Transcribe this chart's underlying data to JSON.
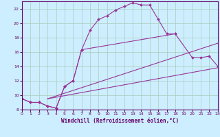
{
  "bg_color": "#cceeff",
  "grid_color": "#aaccbb",
  "line_color": "#993399",
  "xlabel": "Windchill (Refroidissement éolien,°C)",
  "xlabel_color": "#660066",
  "tick_color": "#660066",
  "spine_color": "#660066",
  "xlim": [
    0,
    23
  ],
  "ylim": [
    8,
    23
  ],
  "yticks": [
    8,
    10,
    12,
    14,
    16,
    18,
    20,
    22
  ],
  "xticks": [
    0,
    1,
    2,
    3,
    4,
    5,
    6,
    7,
    8,
    9,
    10,
    11,
    12,
    13,
    14,
    15,
    16,
    17,
    18,
    19,
    20,
    21,
    22,
    23
  ],
  "curve1_x": [
    0,
    1,
    2,
    3,
    4,
    5,
    6,
    7,
    8,
    9,
    10,
    11,
    12,
    13,
    14,
    15,
    16,
    17,
    18
  ],
  "curve1_y": [
    9.5,
    9.0,
    9.0,
    8.5,
    8.2,
    11.2,
    12.0,
    16.3,
    19.0,
    20.5,
    21.0,
    21.8,
    22.3,
    22.8,
    22.5,
    22.5,
    20.5,
    18.5,
    18.5
  ],
  "curve2_x": [
    0,
    1,
    2,
    3,
    4,
    5,
    6,
    7,
    18,
    20,
    21,
    22,
    23
  ],
  "curve2_y": [
    9.5,
    9.0,
    9.0,
    8.5,
    8.2,
    11.2,
    12.0,
    16.3,
    18.5,
    15.2,
    15.2,
    15.4,
    14.0
  ],
  "line3_x": [
    3,
    23
  ],
  "line3_y": [
    9.5,
    17.2
  ],
  "line4_x": [
    3,
    23
  ],
  "line4_y": [
    9.5,
    13.8
  ]
}
